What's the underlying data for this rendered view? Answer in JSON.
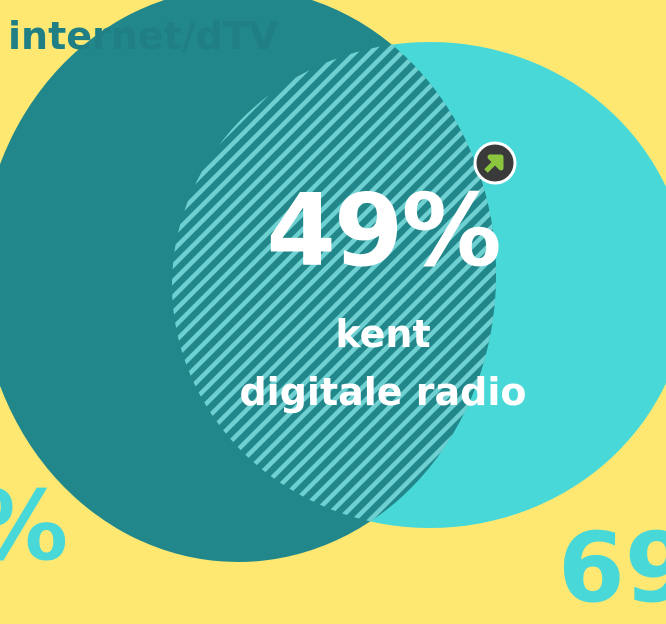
{
  "labels": {
    "internet_dtv": "internet/dTV",
    "percentage": "49%",
    "caption_line1": "kent",
    "caption_line2": "digitale radio",
    "left_fragment": "%",
    "right_fragment": "69"
  },
  "icons": {
    "badge": "arrow-up-right-icon"
  },
  "colors": {
    "background": "#FFE872",
    "dark_circle": "#22878A",
    "light_circle": "#49D8D8",
    "hatch_light": "#6FD0D2",
    "text_white": "#FFFFFF",
    "label_teal": "#1F7F84",
    "badge_bg": "#3A3A3A",
    "badge_arrow": "#8CC63F"
  }
}
